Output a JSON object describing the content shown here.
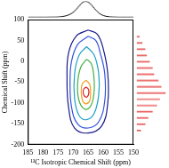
{
  "chart_data": [
    {
      "type": "contour",
      "x_label": "¹³C Isotropic Chemical Shift (ppm)",
      "y_label": "Chemical Shift (ppm)",
      "xlim": [
        185,
        150
      ],
      "xticks": [
        185,
        180,
        175,
        170,
        165,
        160,
        155,
        150
      ],
      "ylim": [
        -200,
        100
      ],
      "yticks": [
        -200,
        -150,
        -100,
        -50,
        0,
        50,
        100
      ],
      "grid": false,
      "series": [
        {
          "color": "#1a1a8c",
          "x": [
            165,
            169,
            171.5,
            172,
            171.5,
            169.5,
            165,
            160.5,
            158.5,
            158.5,
            160,
            162,
            165
          ],
          "values": [
            75,
            60,
            20,
            -40,
            -110,
            -160,
            -172,
            -155,
            -100,
            -30,
            30,
            65,
            75
          ]
        },
        {
          "color": "#3355dd",
          "x": [
            165,
            168.5,
            170.5,
            171,
            170.5,
            168.5,
            165,
            161.5,
            159.5,
            159.5,
            161,
            162.5,
            165
          ],
          "values": [
            60,
            40,
            0,
            -50,
            -110,
            -150,
            -160,
            -145,
            -95,
            -30,
            20,
            50,
            60
          ]
        },
        {
          "color": "#22a0c8",
          "x": [
            165.5,
            168,
            169.5,
            169.5,
            168,
            165.5,
            163,
            161.5,
            161.5,
            163,
            165.5
          ],
          "values": [
            35,
            15,
            -30,
            -90,
            -130,
            -140,
            -125,
            -80,
            -30,
            15,
            35
          ]
        },
        {
          "color": "#44b044",
          "x": [
            165.5,
            167.5,
            168.5,
            168,
            166,
            164,
            163,
            163.2,
            164,
            165.5
          ],
          "values": [
            5,
            -15,
            -55,
            -95,
            -115,
            -105,
            -70,
            -30,
            -5,
            5
          ]
        },
        {
          "color": "#f0a020",
          "x": [
            165.7,
            167,
            167.3,
            166.8,
            165.7,
            164.5,
            164.2,
            164.5,
            165.7
          ],
          "values": [
            -45,
            -55,
            -75,
            -95,
            -102,
            -95,
            -75,
            -55,
            -45
          ]
        },
        {
          "color": "#e02020",
          "x": [
            165.7,
            166.5,
            166.6,
            166,
            165.3,
            164.8,
            164.9,
            165.7
          ],
          "values": [
            -62,
            -67,
            -77,
            -85,
            -85,
            -77,
            -67,
            -62
          ]
        }
      ]
    },
    {
      "type": "line",
      "color": "#000000",
      "tick_labels": false,
      "xlim": [
        185,
        150
      ],
      "ylim": [
        0,
        1
      ],
      "x": [
        185,
        183,
        181,
        179,
        177,
        175,
        174,
        173,
        172,
        171,
        170,
        169,
        168,
        167,
        166,
        165,
        164,
        163,
        162,
        161,
        160,
        159,
        158,
        157,
        155,
        153,
        151,
        150
      ],
      "values": [
        0.01,
        0.01,
        0.01,
        0.01,
        0.015,
        0.02,
        0.04,
        0.07,
        0.12,
        0.2,
        0.32,
        0.5,
        0.72,
        0.92,
        1,
        0.95,
        0.78,
        0.55,
        0.35,
        0.2,
        0.11,
        0.06,
        0.03,
        0.02,
        0.01,
        0.01,
        0.01,
        0.01
      ]
    },
    {
      "type": "bar",
      "orientation": "horizontal",
      "color": "#e02020",
      "tick_labels": false,
      "xlim": [
        -200,
        100
      ],
      "ylim": [
        0,
        1
      ],
      "x": [
        60,
        45,
        30,
        15,
        0,
        -15,
        -30,
        -45,
        -60,
        -75,
        -90,
        -105,
        -120,
        -135,
        -150,
        -165
      ],
      "values": [
        0.1,
        0.2,
        0.3,
        0.35,
        0.45,
        0.55,
        0.6,
        0.75,
        0.85,
        1,
        0.8,
        0.7,
        0.55,
        0.4,
        0.3,
        0.15
      ]
    }
  ]
}
